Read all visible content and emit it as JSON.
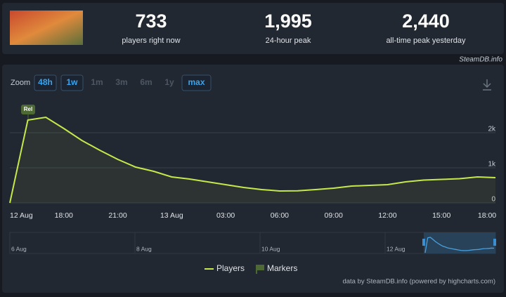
{
  "header": {
    "stats": [
      {
        "value": "733",
        "label": "players right now"
      },
      {
        "value": "1,995",
        "label": "24-hour peak"
      },
      {
        "value": "2,440",
        "label": "all-time peak yesterday"
      }
    ],
    "source": "SteamDB.info"
  },
  "zoom": {
    "label": "Zoom",
    "buttons": [
      "48h",
      "1w",
      "1m",
      "3m",
      "6m",
      "1y",
      "max"
    ]
  },
  "chart_data": {
    "type": "line",
    "categories": [
      "12 Aug",
      null,
      null,
      "18:00",
      null,
      null,
      "21:00",
      null,
      null,
      "13 Aug",
      null,
      null,
      "03:00",
      null,
      null,
      "06:00",
      null,
      null,
      "09:00",
      null,
      null,
      "12:00",
      null,
      null,
      "15:00",
      null,
      null,
      "18:00"
    ],
    "series": [
      {
        "name": "Players",
        "color": "#c6e84b",
        "values": [
          0,
          2360,
          2440,
          2120,
          1780,
          1500,
          1240,
          1020,
          900,
          740,
          680,
          600,
          520,
          440,
          380,
          340,
          345,
          380,
          420,
          480,
          500,
          520,
          600,
          650,
          670,
          690,
          740,
          720
        ]
      }
    ],
    "ylim": [
      0,
      3000
    ],
    "yticks": [
      0,
      {
        "value": 1000,
        "label": "1k"
      },
      {
        "value": 2000,
        "label": "2k"
      }
    ],
    "grid": true,
    "annotation": "Rel",
    "marker_legend": "Markers",
    "navigator_labels": [
      "6 Aug",
      "8 Aug",
      "10 Aug",
      "12 Aug"
    ],
    "credits": "data by SteamDB.info (powered by highcharts.com)"
  }
}
